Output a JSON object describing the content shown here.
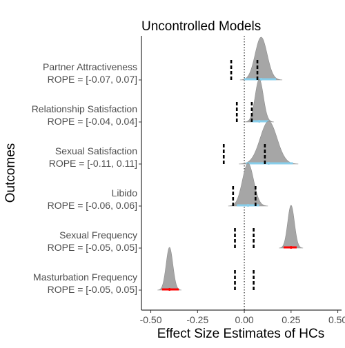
{
  "chart_data": {
    "type": "ridgeline",
    "title": "Uncontrolled Models",
    "xlabel": "Effect Size Estimates of HCs",
    "ylabel": "Outcomes",
    "xlim": [
      -0.55,
      0.52
    ],
    "xticks": [
      -0.5,
      -0.25,
      0.0,
      0.25,
      0.5
    ],
    "xtick_labels": [
      "-0.50",
      "-0.25",
      "0.00",
      "0.25",
      "0.50"
    ],
    "reference_line": 0.0,
    "grid": false,
    "colors": {
      "density": "#a6a6a6",
      "interval_overlapping_rope": "#87ceeb",
      "interval_outside_rope": "#ff0000",
      "rope_bounds": "#000000"
    },
    "outcomes": [
      {
        "name": "Partner Attractiveness",
        "rope_label": "ROPE = [-0.07, 0.07]",
        "rope": [
          -0.07,
          0.07
        ],
        "median": 0.09,
        "sd": 0.032,
        "interval": [
          0.0,
          0.17
        ],
        "interval_color": "interval_overlapping_rope"
      },
      {
        "name": "Relationship Satisfaction",
        "rope_label": "ROPE = [-0.04, 0.04]",
        "rope": [
          -0.04,
          0.04
        ],
        "median": 0.08,
        "sd": 0.022,
        "interval": [
          0.04,
          0.13
        ],
        "interval_color": "interval_overlapping_rope"
      },
      {
        "name": "Sexual Satisfaction",
        "rope_label": "ROPE = [-0.11, 0.11]",
        "rope": [
          -0.11,
          0.11
        ],
        "median": 0.13,
        "sd": 0.045,
        "interval": [
          0.01,
          0.26
        ],
        "interval_color": "interval_overlapping_rope"
      },
      {
        "name": "Libido",
        "rope_label": "ROPE = [-0.06, 0.06]",
        "rope": [
          -0.06,
          0.06
        ],
        "median": 0.02,
        "sd": 0.03,
        "interval": [
          -0.04,
          0.08
        ],
        "interval_color": "interval_overlapping_rope"
      },
      {
        "name": "Sexual Frequency",
        "rope_label": "ROPE = [-0.05, 0.05]",
        "rope": [
          -0.05,
          0.05
        ],
        "median": 0.25,
        "sd": 0.018,
        "interval": [
          0.21,
          0.28
        ],
        "interval_color": "interval_outside_rope"
      },
      {
        "name": "Masturbation Frequency",
        "rope_label": "ROPE = [-0.05, 0.05]",
        "rope": [
          -0.05,
          0.05
        ],
        "median": -0.4,
        "sd": 0.018,
        "interval": [
          -0.44,
          -0.35
        ],
        "interval_color": "interval_outside_rope"
      }
    ]
  }
}
